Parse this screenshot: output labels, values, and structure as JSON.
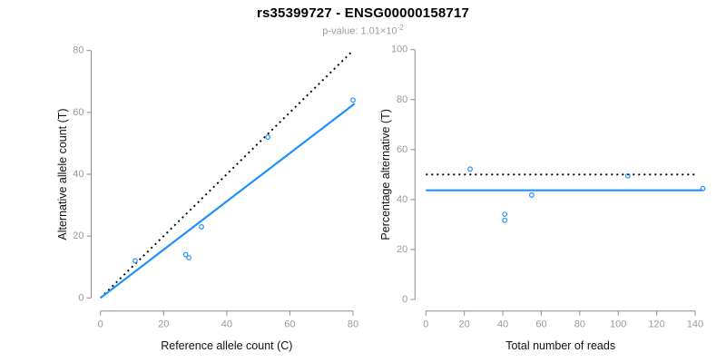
{
  "header": {
    "title": "rs35399727 - ENSG00000158717",
    "subtitle_prefix": "p-value: 1.01×10",
    "subtitle_exponent": "-2"
  },
  "colors": {
    "accent_blue": "#1E90FF",
    "axis_gray": "#8c8c8c",
    "tick_label_gray": "#9a9a9a",
    "label_black": "#111111",
    "dotted_black": "#000000",
    "subtitle_gray": "#9b9b9b"
  },
  "chart_data": [
    {
      "type": "scatter",
      "panel": "allele-counts",
      "title": "rs35399727 - ENSG00000158717",
      "subtitle": "p-value: 1.01x10^-2",
      "xlabel": "Reference allele count (C)",
      "ylabel": "Alternative allele count (T)",
      "xlim": [
        0,
        80
      ],
      "ylim": [
        0,
        80
      ],
      "xticks": [
        0,
        20,
        40,
        60,
        80
      ],
      "yticks": [
        0,
        20,
        40,
        60,
        80
      ],
      "grid": false,
      "legend": null,
      "point_color": "#1E90FF",
      "points": [
        [
          11,
          12
        ],
        [
          27,
          14
        ],
        [
          28,
          13
        ],
        [
          32,
          23
        ],
        [
          53,
          52
        ],
        [
          80,
          64
        ]
      ],
      "lines": [
        {
          "name": "identity-line",
          "style": "dotted",
          "color": "#000000",
          "x": [
            0,
            79.5
          ],
          "y": [
            0,
            79.5
          ]
        },
        {
          "name": "regression-line",
          "style": "solid",
          "color": "#1E90FF",
          "x": [
            0,
            80.5
          ],
          "y": [
            0,
            62.8
          ]
        }
      ]
    },
    {
      "type": "scatter",
      "panel": "percentage-alternative",
      "title": "",
      "subtitle": "",
      "xlabel": "Total number of reads",
      "ylabel": "Percentage alternative (T)",
      "xlim": [
        0,
        140
      ],
      "ylim": [
        0,
        100
      ],
      "xticks": [
        0,
        20,
        40,
        60,
        80,
        100,
        120,
        140
      ],
      "yticks": [
        0,
        20,
        40,
        60,
        80,
        100
      ],
      "grid": false,
      "legend": null,
      "point_color": "#1E90FF",
      "points": [
        [
          23,
          52.2
        ],
        [
          41,
          34.1
        ],
        [
          41,
          31.7
        ],
        [
          55,
          41.8
        ],
        [
          105,
          49.5
        ],
        [
          144,
          44.4
        ]
      ],
      "lines": [
        {
          "name": "expected-50pct-line",
          "style": "dotted",
          "color": "#000000",
          "x": [
            0,
            141
          ],
          "y": [
            50,
            50
          ]
        },
        {
          "name": "fitted-percentage-line",
          "style": "solid",
          "color": "#1E90FF",
          "x": [
            0,
            144
          ],
          "y": [
            43.7,
            43.7
          ]
        }
      ]
    }
  ]
}
